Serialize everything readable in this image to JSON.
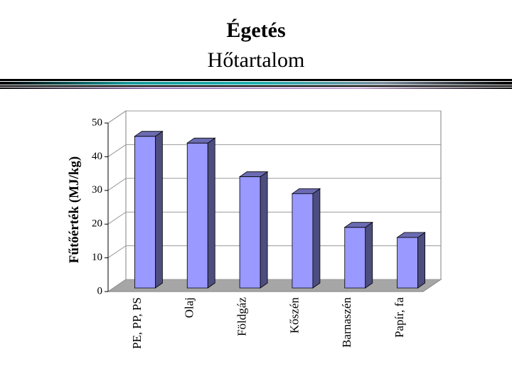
{
  "chart_data": {
    "type": "bar3d",
    "title": "Égetés",
    "subtitle": "Hőtartalom",
    "y_label": "Fűtőérték (MJ/kg)",
    "categories": [
      "PE, PP, PS",
      "Olaj",
      "Földgáz",
      "Kőszén",
      "Barnaszén",
      "Papír, fa"
    ],
    "values": [
      45,
      43,
      33,
      28,
      18,
      15
    ],
    "color": "#9999ff",
    "ylim": [
      0,
      50
    ],
    "yticks": [
      0,
      10,
      20,
      30,
      40,
      50
    ],
    "grid": true
  }
}
